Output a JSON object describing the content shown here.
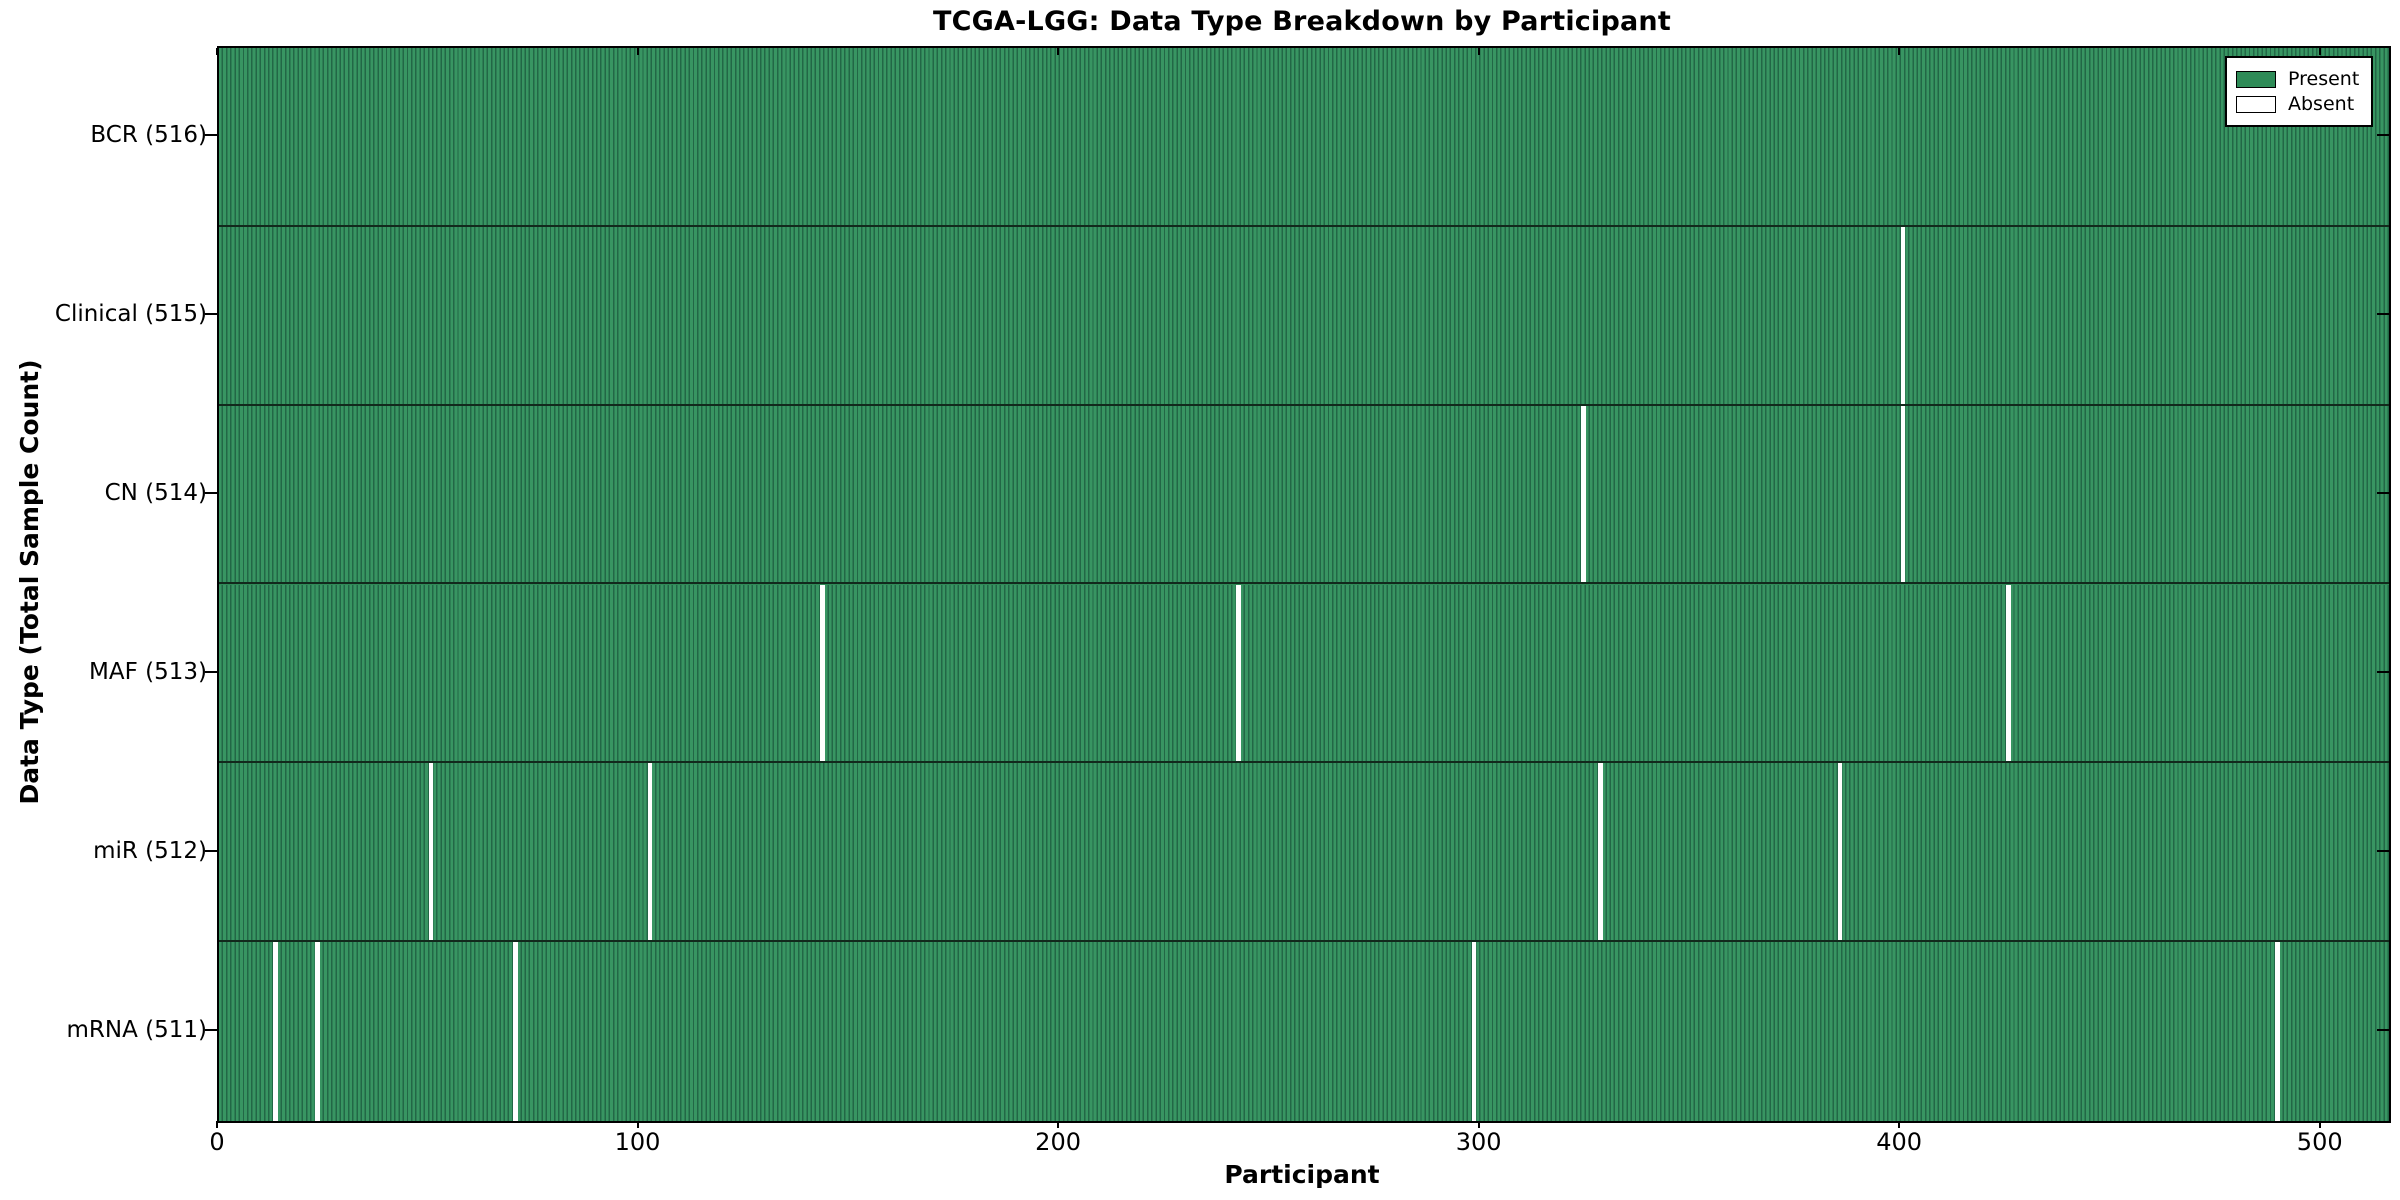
{
  "title": "TCGA-LGG: Data Type Breakdown by Participant",
  "xlabel": "Participant",
  "ylabel": "Data Type (Total Sample Count)",
  "legend": {
    "position": "upper right",
    "present_label": "Present",
    "absent_label": "Absent"
  },
  "colors": {
    "present": "#2e8b57",
    "present_edge": "#226746",
    "absent": "#ffffff",
    "frame": "#000000",
    "background": "#ffffff"
  },
  "chart_data": {
    "type": "heatmap",
    "title": "TCGA-LGG: Data Type Breakdown by Participant",
    "xlabel": "Participant",
    "ylabel": "Data Type (Total Sample Count)",
    "x_range": [
      0,
      516
    ],
    "x_ticks": [
      0,
      100,
      200,
      300,
      400,
      500
    ],
    "legend_entries": [
      "Present",
      "Absent"
    ],
    "legend_position": "upper right",
    "grid": false,
    "rows": [
      {
        "label": "BCR (516)",
        "data_type": "BCR",
        "total_samples": 516,
        "absent_participants": []
      },
      {
        "label": "Clinical (515)",
        "data_type": "Clinical",
        "total_samples": 515,
        "absent_participants": [
          400
        ]
      },
      {
        "label": "CN (514)",
        "data_type": "CN",
        "total_samples": 514,
        "absent_participants": [
          324,
          400
        ]
      },
      {
        "label": "MAF (513)",
        "data_type": "MAF",
        "total_samples": 513,
        "absent_participants": [
          143,
          242,
          425
        ]
      },
      {
        "label": "miR (512)",
        "data_type": "miR",
        "total_samples": 512,
        "absent_participants": [
          50,
          102,
          328,
          385
        ]
      },
      {
        "label": "mRNA (511)",
        "data_type": "mRNA",
        "total_samples": 511,
        "absent_participants": [
          13,
          23,
          70,
          298,
          489
        ]
      }
    ]
  }
}
